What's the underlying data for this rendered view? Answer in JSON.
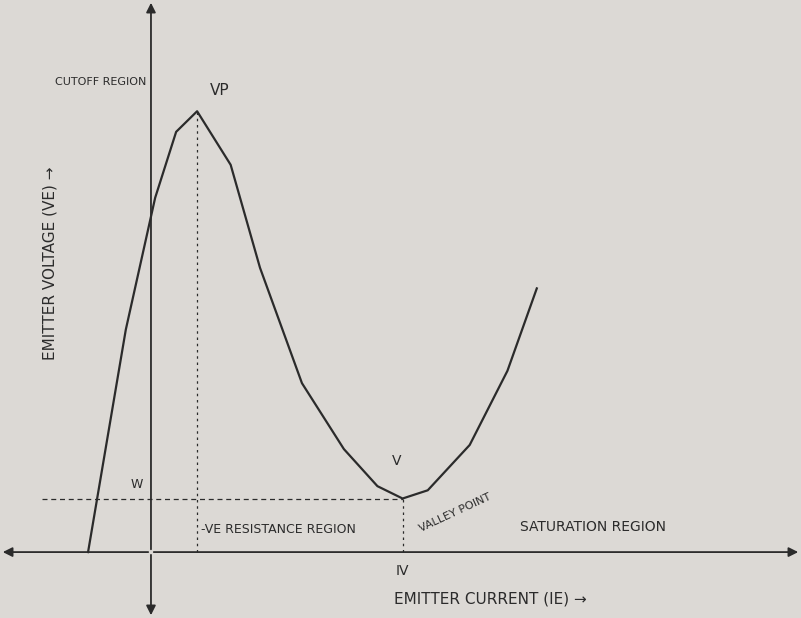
{
  "chart_data": {
    "type": "line",
    "x_label": "EMITTER CURRENT (IE) →",
    "y_label": "EMITTER VOLTAGE (VE) →",
    "x": [
      -1.5,
      -0.6,
      0.1,
      0.6,
      1.1,
      1.9,
      2.6,
      3.6,
      4.6,
      5.4,
      6.0,
      6.6,
      7.6,
      8.5,
      9.2
    ],
    "values": [
      0,
      5.4,
      8.6,
      10.2,
      10.7,
      9.4,
      6.9,
      4.1,
      2.5,
      1.6,
      1.3,
      1.5,
      2.6,
      4.4,
      6.4
    ],
    "xlim": [
      -3.6,
      15.5
    ],
    "ylim": [
      -1.6,
      13.4
    ],
    "xticks": [],
    "yticks": [],
    "tick_labels": false,
    "grid": false,
    "color": "#2b2b2b",
    "annotations": [
      "CUTOFF REGION",
      "VP",
      "W",
      "V",
      "-VE RESISTANCE REGION",
      "VALLEY POINT",
      "SATURATION REGION",
      "IV"
    ]
  }
}
